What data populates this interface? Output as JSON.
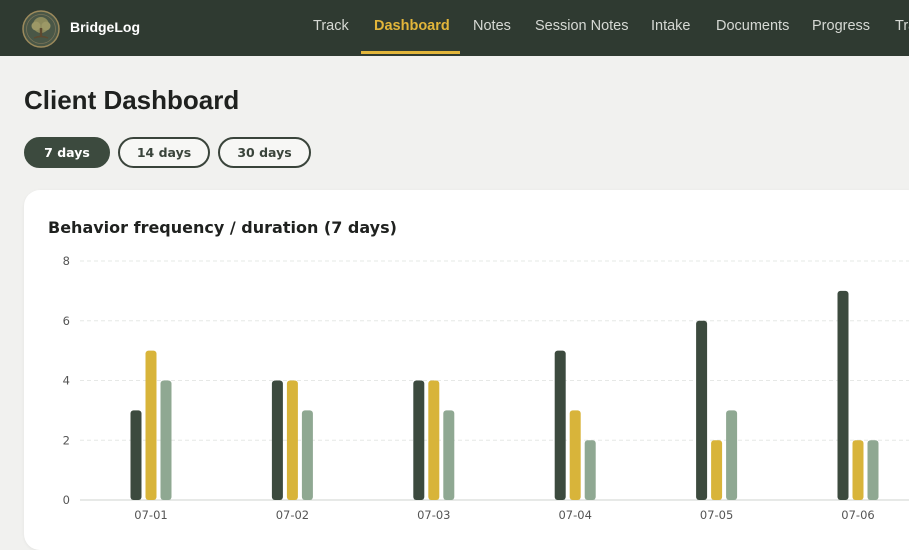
{
  "app": {
    "name": "BridgeLog"
  },
  "nav": {
    "items": [
      {
        "label": "Track",
        "active": false
      },
      {
        "label": "Dashboard",
        "active": true
      },
      {
        "label": "Notes",
        "active": false
      },
      {
        "label": "Session Notes",
        "active": false
      },
      {
        "label": "Intake",
        "active": false
      },
      {
        "label": "Documents",
        "active": false
      },
      {
        "label": "Progress",
        "active": false
      },
      {
        "label": "Tra",
        "active": false
      }
    ]
  },
  "page": {
    "title": "Client Dashboard"
  },
  "ranges": [
    {
      "label": "7 days",
      "active": true
    },
    {
      "label": "14 days",
      "active": false
    },
    {
      "label": "30 days",
      "active": false
    }
  ],
  "card": {
    "title": "Behavior frequency / duration (7 days)"
  },
  "colors": {
    "nav_bg": "#2f3a31",
    "accent": "#e2b53a",
    "series": [
      "#3c4a3e",
      "#d8b43a",
      "#8fa892"
    ]
  },
  "chart_data": {
    "type": "bar",
    "categories": [
      "07-01",
      "07-02",
      "07-03",
      "07-04",
      "07-05",
      "07-06"
    ],
    "series": [
      {
        "values": [
          3,
          4,
          4,
          5,
          6,
          7
        ]
      },
      {
        "values": [
          5,
          4,
          4,
          3,
          2,
          2
        ]
      },
      {
        "values": [
          4,
          3,
          3,
          2,
          3,
          2
        ]
      }
    ],
    "ylim": [
      0,
      8
    ],
    "yticks": [
      0,
      2,
      4,
      6,
      8
    ],
    "grid": true
  }
}
